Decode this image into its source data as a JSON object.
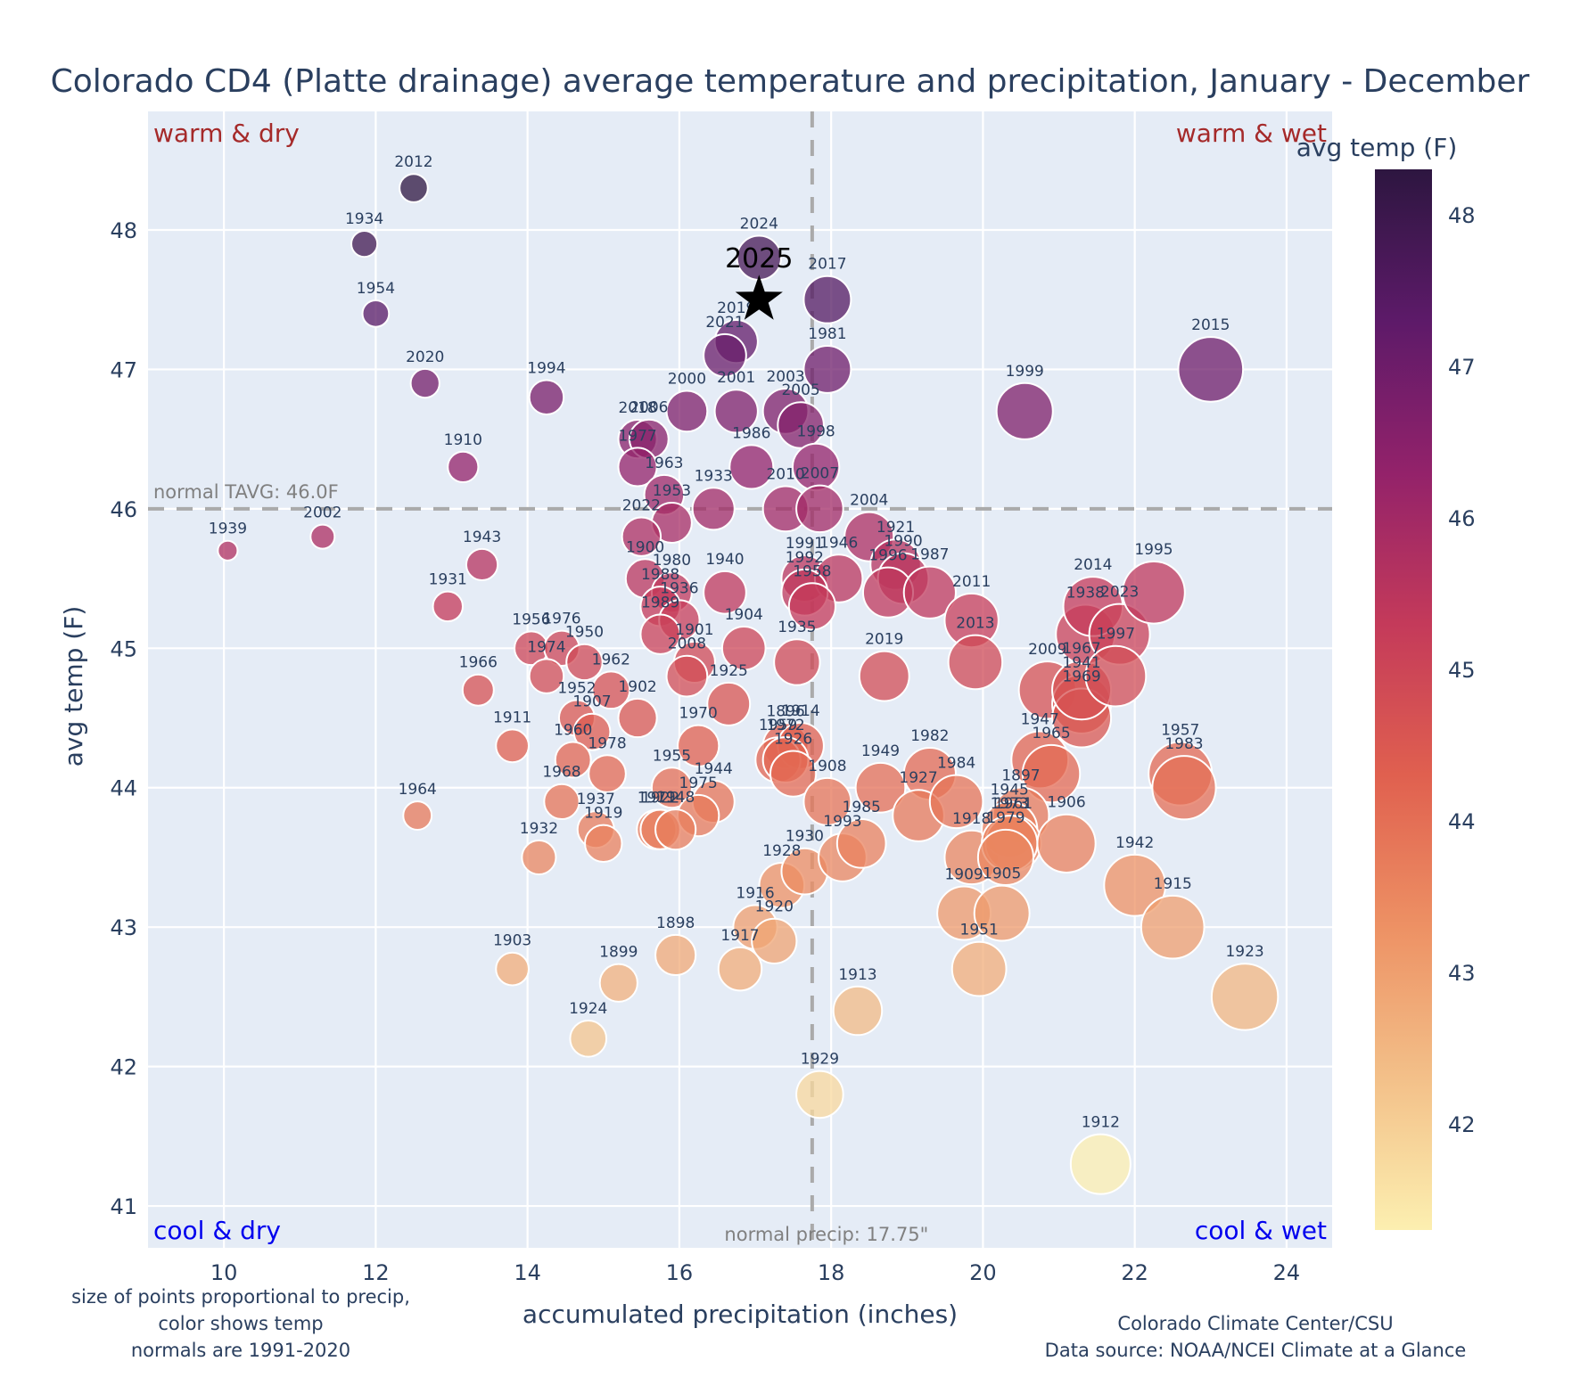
{
  "chart_data": {
    "type": "scatter",
    "title": "Colorado CD4 (Platte drainage) average temperature and precipitation, January - December",
    "xlabel": "accumulated precipitation (inches)",
    "ylabel": "avg temp (F)",
    "xlim": [
      9.0,
      24.6
    ],
    "ylim": [
      40.7,
      48.85
    ],
    "xticks": [
      10,
      12,
      14,
      16,
      18,
      20,
      22,
      24
    ],
    "yticks": [
      41,
      42,
      43,
      44,
      45,
      46,
      47,
      48
    ],
    "grid": true,
    "colorbar": {
      "title": "avg temp (F)",
      "range": [
        41.3,
        48.3
      ],
      "ticks": [
        42,
        43,
        44,
        45,
        46,
        47,
        48
      ],
      "colorscale": [
        "#fcefb0",
        "#f3c089",
        "#ed9164",
        "#e0604f",
        "#c43a5a",
        "#93226a",
        "#5d1a69",
        "#2d1640"
      ]
    },
    "normal_temp": 46.0,
    "normal_temp_label": "normal TAVG: 46.0F",
    "normal_precip": 17.75,
    "normal_precip_label": "normal precip: 17.75\"",
    "quadrants": {
      "top_left": "warm & dry",
      "top_right": "warm & wet",
      "bottom_left": "cool & dry",
      "bottom_right": "cool & wet"
    },
    "current_year": {
      "label": "2025",
      "precip": 17.05,
      "temp": 47.5,
      "marker": "star"
    },
    "points": [
      {
        "year": "2012",
        "precip": 12.5,
        "temp": 48.3
      },
      {
        "year": "1934",
        "precip": 11.85,
        "temp": 47.9
      },
      {
        "year": "1954",
        "precip": 12.0,
        "temp": 47.4
      },
      {
        "year": "2020",
        "precip": 12.65,
        "temp": 46.9
      },
      {
        "year": "1910",
        "precip": 13.15,
        "temp": 46.3
      },
      {
        "year": "1939",
        "precip": 10.05,
        "temp": 45.7
      },
      {
        "year": "2002",
        "precip": 11.3,
        "temp": 45.8
      },
      {
        "year": "1943",
        "precip": 13.4,
        "temp": 45.6
      },
      {
        "year": "1931",
        "precip": 12.95,
        "temp": 45.3
      },
      {
        "year": "1966",
        "precip": 13.35,
        "temp": 44.7
      },
      {
        "year": "1911",
        "precip": 13.8,
        "temp": 44.3
      },
      {
        "year": "1964",
        "precip": 12.55,
        "temp": 43.8
      },
      {
        "year": "1994",
        "precip": 14.25,
        "temp": 46.8
      },
      {
        "year": "1956",
        "precip": 14.05,
        "temp": 45.0
      },
      {
        "year": "1976",
        "precip": 14.45,
        "temp": 45.0
      },
      {
        "year": "1974",
        "precip": 14.25,
        "temp": 44.8
      },
      {
        "year": "1950",
        "precip": 14.75,
        "temp": 44.9
      },
      {
        "year": "1962",
        "precip": 15.1,
        "temp": 44.7
      },
      {
        "year": "1952",
        "precip": 14.65,
        "temp": 44.5
      },
      {
        "year": "1907",
        "precip": 14.85,
        "temp": 44.4
      },
      {
        "year": "1902",
        "precip": 15.45,
        "temp": 44.5
      },
      {
        "year": "1960",
        "precip": 14.6,
        "temp": 44.2
      },
      {
        "year": "1978",
        "precip": 15.05,
        "temp": 44.1
      },
      {
        "year": "1968",
        "precip": 14.45,
        "temp": 43.9
      },
      {
        "year": "1937",
        "precip": 14.9,
        "temp": 43.7
      },
      {
        "year": "1919",
        "precip": 15.0,
        "temp": 43.6
      },
      {
        "year": "1932",
        "precip": 14.15,
        "temp": 43.5
      },
      {
        "year": "1903",
        "precip": 13.8,
        "temp": 42.7
      },
      {
        "year": "1899",
        "precip": 15.2,
        "temp": 42.6
      },
      {
        "year": "1924",
        "precip": 14.8,
        "temp": 42.2
      },
      {
        "year": "1898",
        "precip": 15.95,
        "temp": 42.8
      },
      {
        "year": "2018",
        "precip": 15.45,
        "temp": 46.5
      },
      {
        "year": "2006",
        "precip": 15.6,
        "temp": 46.5
      },
      {
        "year": "1977",
        "precip": 15.45,
        "temp": 46.3
      },
      {
        "year": "1963",
        "precip": 15.8,
        "temp": 46.1
      },
      {
        "year": "2000",
        "precip": 16.1,
        "temp": 46.7
      },
      {
        "year": "1953",
        "precip": 15.9,
        "temp": 45.9
      },
      {
        "year": "2022",
        "precip": 15.5,
        "temp": 45.8
      },
      {
        "year": "1933",
        "precip": 16.45,
        "temp": 46.0
      },
      {
        "year": "1900",
        "precip": 15.55,
        "temp": 45.5
      },
      {
        "year": "1980",
        "precip": 15.9,
        "temp": 45.4
      },
      {
        "year": "1988",
        "precip": 15.75,
        "temp": 45.3
      },
      {
        "year": "1936",
        "precip": 16.0,
        "temp": 45.2
      },
      {
        "year": "1989",
        "precip": 15.75,
        "temp": 45.1
      },
      {
        "year": "1940",
        "precip": 16.6,
        "temp": 45.4
      },
      {
        "year": "1901",
        "precip": 16.2,
        "temp": 44.9
      },
      {
        "year": "2008",
        "precip": 16.1,
        "temp": 44.8
      },
      {
        "year": "1904",
        "precip": 16.85,
        "temp": 45.0
      },
      {
        "year": "1925",
        "precip": 16.65,
        "temp": 44.6
      },
      {
        "year": "1970",
        "precip": 16.25,
        "temp": 44.3
      },
      {
        "year": "1955",
        "precip": 15.9,
        "temp": 44.0
      },
      {
        "year": "1971",
        "precip": 15.7,
        "temp": 43.7
      },
      {
        "year": "1944",
        "precip": 16.45,
        "temp": 43.9
      },
      {
        "year": "1975",
        "precip": 16.25,
        "temp": 43.8
      },
      {
        "year": "1922",
        "precip": 15.75,
        "temp": 43.7
      },
      {
        "year": "1948",
        "precip": 15.95,
        "temp": 43.7
      },
      {
        "year": "1917",
        "precip": 16.8,
        "temp": 42.7
      },
      {
        "year": "1916",
        "precip": 17.0,
        "temp": 43.0
      },
      {
        "year": "1920",
        "precip": 17.25,
        "temp": 42.9
      },
      {
        "year": "2024",
        "precip": 17.05,
        "temp": 47.8
      },
      {
        "year": "2019a",
        "label": "2019",
        "precip": 16.75,
        "temp": 47.2
      },
      {
        "year": "2021",
        "precip": 16.6,
        "temp": 47.1
      },
      {
        "year": "2001",
        "precip": 16.75,
        "temp": 46.7
      },
      {
        "year": "2003",
        "precip": 17.4,
        "temp": 46.7
      },
      {
        "year": "2005",
        "precip": 17.6,
        "temp": 46.6
      },
      {
        "year": "1986",
        "precip": 16.95,
        "temp": 46.3
      },
      {
        "year": "1998",
        "precip": 17.8,
        "temp": 46.3
      },
      {
        "year": "2010",
        "precip": 17.4,
        "temp": 46.0
      },
      {
        "year": "2007",
        "precip": 17.85,
        "temp": 46.0
      },
      {
        "year": "2017",
        "precip": 17.95,
        "temp": 47.5
      },
      {
        "year": "1981",
        "precip": 17.95,
        "temp": 47.0
      },
      {
        "year": "1991",
        "precip": 17.65,
        "temp": 45.5
      },
      {
        "year": "1946",
        "precip": 18.1,
        "temp": 45.5
      },
      {
        "year": "1992",
        "precip": 17.65,
        "temp": 45.4
      },
      {
        "year": "1958",
        "precip": 17.75,
        "temp": 45.3
      },
      {
        "year": "1935",
        "precip": 17.55,
        "temp": 44.9
      },
      {
        "year": "1896",
        "precip": 17.4,
        "temp": 44.3
      },
      {
        "year": "1914",
        "precip": 17.6,
        "temp": 44.3
      },
      {
        "year": "1959",
        "precip": 17.3,
        "temp": 44.2
      },
      {
        "year": "1972",
        "precip": 17.4,
        "temp": 44.2
      },
      {
        "year": "1926",
        "precip": 17.5,
        "temp": 44.1
      },
      {
        "year": "1908",
        "precip": 17.95,
        "temp": 43.9
      },
      {
        "year": "1928",
        "precip": 17.35,
        "temp": 43.3
      },
      {
        "year": "1930",
        "precip": 17.65,
        "temp": 43.4
      },
      {
        "year": "1993",
        "precip": 18.15,
        "temp": 43.5
      },
      {
        "year": "1985",
        "precip": 18.4,
        "temp": 43.6
      },
      {
        "year": "1913",
        "precip": 18.35,
        "temp": 42.4
      },
      {
        "year": "1929",
        "precip": 17.85,
        "temp": 41.8
      },
      {
        "year": "2004",
        "precip": 18.5,
        "temp": 45.8
      },
      {
        "year": "1921",
        "precip": 18.85,
        "temp": 45.6
      },
      {
        "year": "1990",
        "precip": 18.95,
        "temp": 45.5
      },
      {
        "year": "1996",
        "precip": 18.75,
        "temp": 45.4
      },
      {
        "year": "1987",
        "precip": 19.3,
        "temp": 45.4
      },
      {
        "year": "2011",
        "precip": 19.85,
        "temp": 45.2
      },
      {
        "year": "2013",
        "precip": 19.9,
        "temp": 44.9
      },
      {
        "year": "2019",
        "precip": 18.7,
        "temp": 44.8
      },
      {
        "year": "1949",
        "precip": 18.65,
        "temp": 44.0
      },
      {
        "year": "1982",
        "precip": 19.3,
        "temp": 44.1
      },
      {
        "year": "1927",
        "precip": 19.15,
        "temp": 43.8
      },
      {
        "year": "1984",
        "precip": 19.65,
        "temp": 43.9
      },
      {
        "year": "1918",
        "precip": 19.85,
        "temp": 43.5
      },
      {
        "year": "1909",
        "precip": 19.75,
        "temp": 43.1
      },
      {
        "year": "1905",
        "precip": 20.25,
        "temp": 43.1
      },
      {
        "year": "1951",
        "precip": 19.95,
        "temp": 42.7
      },
      {
        "year": "1999",
        "precip": 20.55,
        "temp": 46.7
      },
      {
        "year": "2009",
        "precip": 20.85,
        "temp": 44.7
      },
      {
        "year": "1941",
        "precip": 21.3,
        "temp": 44.6
      },
      {
        "year": "1969",
        "precip": 21.3,
        "temp": 44.5
      },
      {
        "year": "1967",
        "precip": 21.3,
        "temp": 44.7
      },
      {
        "year": "1938",
        "precip": 21.35,
        "temp": 45.1
      },
      {
        "year": "2014",
        "precip": 21.45,
        "temp": 45.3
      },
      {
        "year": "2023",
        "precip": 21.8,
        "temp": 45.1
      },
      {
        "year": "1997",
        "precip": 21.75,
        "temp": 44.8
      },
      {
        "year": "1995",
        "precip": 22.25,
        "temp": 45.4
      },
      {
        "year": "1947",
        "precip": 20.75,
        "temp": 44.2
      },
      {
        "year": "1965",
        "precip": 20.9,
        "temp": 44.1
      },
      {
        "year": "1897",
        "precip": 20.5,
        "temp": 43.8
      },
      {
        "year": "1945",
        "precip": 20.35,
        "temp": 43.7
      },
      {
        "year": "1961",
        "precip": 20.4,
        "temp": 43.6
      },
      {
        "year": "1973",
        "precip": 20.35,
        "temp": 43.6
      },
      {
        "year": "1979",
        "precip": 20.3,
        "temp": 43.5
      },
      {
        "year": "1906",
        "precip": 21.1,
        "temp": 43.6
      },
      {
        "year": "1942",
        "precip": 22.0,
        "temp": 43.3
      },
      {
        "year": "1915",
        "precip": 22.5,
        "temp": 43.0
      },
      {
        "year": "1923",
        "precip": 23.45,
        "temp": 42.5
      },
      {
        "year": "1957",
        "precip": 22.6,
        "temp": 44.1
      },
      {
        "year": "1983",
        "precip": 22.65,
        "temp": 44.0
      },
      {
        "year": "2015",
        "precip": 23.0,
        "temp": 47.0
      },
      {
        "year": "1912",
        "precip": 21.55,
        "temp": 41.3
      }
    ]
  },
  "notes": {
    "left": [
      "size of points proportional to precip,",
      "color shows temp",
      "normals are 1991-2020"
    ],
    "right": [
      "Colorado Climate Center/CSU",
      "Data source: NOAA/NCEI Climate at a Glance"
    ]
  }
}
